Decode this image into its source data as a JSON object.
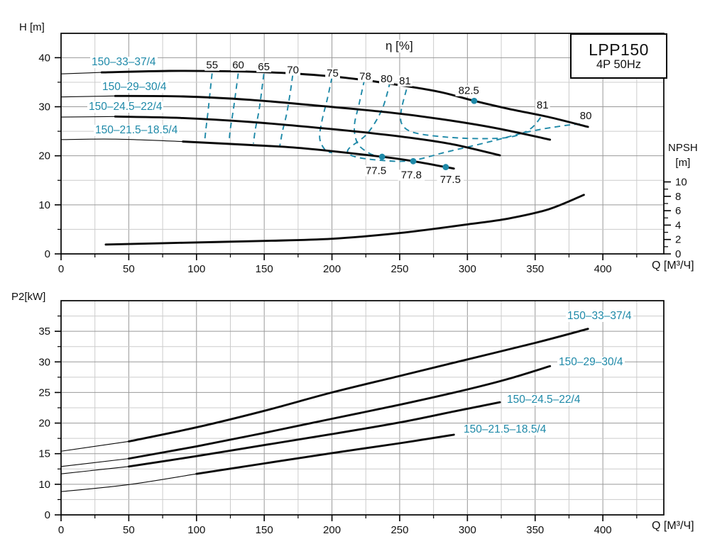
{
  "title_box": {
    "model": "LPP150",
    "spec": "4P  50Hz"
  },
  "labels": {
    "h_axis": "H [m]",
    "p2_axis": "P2[kW]",
    "q_axis": "Q [M³/Ч]",
    "eta": "η [%]",
    "npsh_line1": "NPSH",
    "npsh_line2": "[m]"
  },
  "colors": {
    "accent_teal": "#1e89a8",
    "curve_black": "#0a0a0a",
    "grid_minor": "#cccccc",
    "grid_major": "#999999"
  },
  "chart_data": [
    {
      "id": "head_chart",
      "type": "line",
      "title": "LPP150 4P 50Hz pump head curves",
      "xlabel": "Q [M³/Ч]",
      "ylabel": "H [m]",
      "xlim": [
        0,
        445
      ],
      "ylim": [
        0,
        45
      ],
      "x_major_ticks": [
        0,
        50,
        100,
        150,
        200,
        250,
        300,
        350,
        400
      ],
      "x_minor_step": 25,
      "y_major_ticks": [
        0,
        10,
        20,
        30,
        40
      ],
      "y_minor_ticks": [
        5,
        15,
        25,
        35
      ],
      "series": [
        {
          "name": "150–33–37/4",
          "role": "pump",
          "solid_from": 30,
          "points": [
            [
              0,
              36.7
            ],
            [
              30,
              37.0
            ],
            [
              80,
              37.3
            ],
            [
              130,
              37.2
            ],
            [
              170,
              36.8
            ],
            [
              210,
              35.9
            ],
            [
              250,
              34.4
            ],
            [
              280,
              33.0
            ],
            [
              305,
              31.2
            ],
            [
              330,
              29.6
            ],
            [
              360,
              27.9
            ],
            [
              389,
              25.9
            ]
          ]
        },
        {
          "name": "150–29–30/4",
          "role": "pump",
          "solid_from": 25,
          "points": [
            [
              0,
              32.0
            ],
            [
              40,
              32.2
            ],
            [
              90,
              32.1
            ],
            [
              140,
              31.4
            ],
            [
              190,
              30.2
            ],
            [
              240,
              28.9
            ],
            [
              280,
              27.5
            ],
            [
              320,
              25.7
            ],
            [
              361,
              23.3
            ]
          ]
        },
        {
          "name": "150–24.5–22/4",
          "role": "pump",
          "solid_from": 25,
          "points": [
            [
              0,
              27.9
            ],
            [
              40,
              28.0
            ],
            [
              90,
              27.7
            ],
            [
              140,
              26.9
            ],
            [
              190,
              25.7
            ],
            [
              230,
              24.6
            ],
            [
              260,
              23.6
            ],
            [
              290,
              22.3
            ],
            [
              324,
              20.1
            ]
          ]
        },
        {
          "name": "150–21.5–18.5/4",
          "role": "pump",
          "solid_from": 45,
          "points": [
            [
              0,
              23.3
            ],
            [
              40,
              23.4
            ],
            [
              90,
              22.9
            ],
            [
              140,
              22.2
            ],
            [
              180,
              21.5
            ],
            [
              237,
              19.8
            ],
            [
              260,
              18.9
            ],
            [
              284,
              17.7
            ],
            [
              290,
              17.4
            ]
          ]
        },
        {
          "name": "NPSH",
          "role": "npsh",
          "solid_from": 0,
          "points": [
            [
              33,
              1.3
            ],
            [
              90,
              1.55
            ],
            [
              150,
              1.8
            ],
            [
              200,
              2.1
            ],
            [
              250,
              2.9
            ],
            [
              300,
              4.1
            ],
            [
              330,
              4.9
            ],
            [
              360,
              6.2
            ],
            [
              386,
              8.2
            ]
          ]
        }
      ],
      "npsh_axis": {
        "label": "NPSH",
        "unit": "[m]",
        "ticks": [
          0,
          2,
          4,
          6,
          8,
          10
        ],
        "max": 10
      },
      "efficiency_contours": [
        {
          "value": 55,
          "points": [
            [
              111.5,
              36.8
            ],
            [
              110,
              33
            ],
            [
              108.5,
              29
            ],
            [
              107,
              25.5
            ],
            [
              106,
              23.0
            ]
          ]
        },
        {
          "value": 60,
          "points": [
            [
              130.8,
              36.8
            ],
            [
              129,
              33
            ],
            [
              127,
              29
            ],
            [
              125,
              25.5
            ],
            [
              124,
              22.8
            ]
          ]
        },
        {
          "value": 65,
          "points": [
            [
              149.7,
              36.7
            ],
            [
              148,
              33
            ],
            [
              146,
              29
            ],
            [
              143.5,
              25.5
            ],
            [
              142,
              22.5
            ]
          ]
        },
        {
          "value": 70,
          "points": [
            [
              171,
              36.4
            ],
            [
              169,
              32.5
            ],
            [
              166.5,
              28.5
            ],
            [
              163.5,
              25
            ],
            [
              161.5,
              22.0
            ]
          ]
        },
        {
          "value": 75,
          "points": [
            [
              200,
              36.0
            ],
            [
              196.5,
              31.5
            ],
            [
              192.5,
              27
            ],
            [
              191,
              23.5
            ],
            [
              195,
              21.2
            ],
            [
              200,
              20.6
            ]
          ]
        },
        {
          "value": 78,
          "points": [
            [
              224,
              35.5
            ],
            [
              220,
              30.5
            ],
            [
              216.5,
              26
            ],
            [
              219,
              22.5
            ],
            [
              227,
              20.6
            ],
            [
              233,
              20.0
            ]
          ]
        },
        {
          "value": 80,
          "points": [
            [
              243,
              35.1
            ],
            [
              237,
              29.5
            ],
            [
              226,
              24.5
            ],
            [
              212,
              21.3
            ],
            [
              216,
              19.9
            ],
            [
              235,
              19.1
            ],
            [
              258,
              19.0
            ],
            [
              285,
              20.8
            ],
            [
              317,
              22.9
            ],
            [
              345,
              24.9
            ],
            [
              370,
              26.1
            ],
            [
              383,
              26.5
            ]
          ]
        },
        {
          "value": 81,
          "points": [
            [
              255,
              33.5
            ],
            [
              251,
              29
            ],
            [
              252,
              26.3
            ],
            [
              261,
              24.7
            ],
            [
              285,
              23.8
            ],
            [
              312,
              23.5
            ],
            [
              333,
              23.9
            ],
            [
              347,
              25.6
            ],
            [
              355,
              28.2
            ]
          ]
        }
      ],
      "contour_labels": [
        {
          "text": "55",
          "q": 111.5,
          "h": 38.5
        },
        {
          "text": "60",
          "q": 130.8,
          "h": 38.5
        },
        {
          "text": "65",
          "q": 149.7,
          "h": 38.2
        },
        {
          "text": "70",
          "q": 171.2,
          "h": 37.5
        },
        {
          "text": "75",
          "q": 200.5,
          "h": 36.9
        },
        {
          "text": "78",
          "q": 224.6,
          "h": 36.2
        },
        {
          "text": "80",
          "q": 240.3,
          "h": 35.7
        },
        {
          "text": "81",
          "q": 253.9,
          "h": 35.3
        },
        {
          "text": "81",
          "q": 355.5,
          "h": 30.4
        },
        {
          "text": "80",
          "q": 387.4,
          "h": 28.2
        }
      ],
      "bep_points": [
        {
          "q": 305,
          "h": 31.2,
          "label": "82.5",
          "label_q": 301,
          "label_h": 33.3
        },
        {
          "q": 237,
          "h": 19.8,
          "label": "77.5",
          "label_q": 232.5,
          "label_h": 17.0
        },
        {
          "q": 260,
          "h": 18.9,
          "label": "77.8",
          "label_q": 258.6,
          "label_h": 16.1
        },
        {
          "q": 284,
          "h": 17.7,
          "label": "77.5",
          "label_q": 287.4,
          "label_h": 15.2
        }
      ]
    },
    {
      "id": "power_chart",
      "type": "line",
      "title": "LPP150 4P 50Hz shaft power curves",
      "xlabel": "Q [M³/Ч]",
      "ylabel": "P2[kW]",
      "xlim": [
        0,
        445
      ],
      "y_tick_values": [
        0,
        10,
        15,
        20,
        25,
        30,
        35,
        40
      ],
      "y_labeled_ticks": [
        0,
        10,
        15,
        20,
        25,
        30,
        35
      ],
      "x_major_ticks": [
        0,
        50,
        100,
        150,
        200,
        250,
        300,
        350,
        400
      ],
      "x_minor_step": 25,
      "series": [
        {
          "name": "150–33–37/4",
          "role": "pump",
          "solid_from": 35,
          "points": [
            [
              0,
              15.4
            ],
            [
              50,
              17.0
            ],
            [
              100,
              19.3
            ],
            [
              150,
              22.0
            ],
            [
              200,
              25.0
            ],
            [
              250,
              27.7
            ],
            [
              300,
              30.4
            ],
            [
              350,
              33.1
            ],
            [
              389,
              35.4
            ]
          ]
        },
        {
          "name": "150–29–30/4",
          "role": "pump",
          "solid_from": 30,
          "points": [
            [
              0,
              12.9
            ],
            [
              50,
              14.2
            ],
            [
              100,
              16.2
            ],
            [
              150,
              18.4
            ],
            [
              200,
              20.7
            ],
            [
              250,
              23.0
            ],
            [
              300,
              25.5
            ],
            [
              330,
              27.2
            ],
            [
              361,
              29.3
            ]
          ]
        },
        {
          "name": "150–24.5–22/4",
          "role": "pump",
          "solid_from": 30,
          "points": [
            [
              0,
              11.7
            ],
            [
              50,
              12.9
            ],
            [
              100,
              14.6
            ],
            [
              150,
              16.4
            ],
            [
              200,
              18.2
            ],
            [
              250,
              20.1
            ],
            [
              290,
              21.9
            ],
            [
              324,
              23.4
            ]
          ]
        },
        {
          "name": "150–21.5–18.5/4",
          "role": "pump",
          "solid_from": 55,
          "points": [
            [
              0,
              7.6
            ],
            [
              50,
              9.9
            ],
            [
              100,
              11.7
            ],
            [
              150,
              13.4
            ],
            [
              200,
              15.1
            ],
            [
              250,
              16.7
            ],
            [
              290,
              18.1
            ]
          ]
        }
      ]
    }
  ]
}
